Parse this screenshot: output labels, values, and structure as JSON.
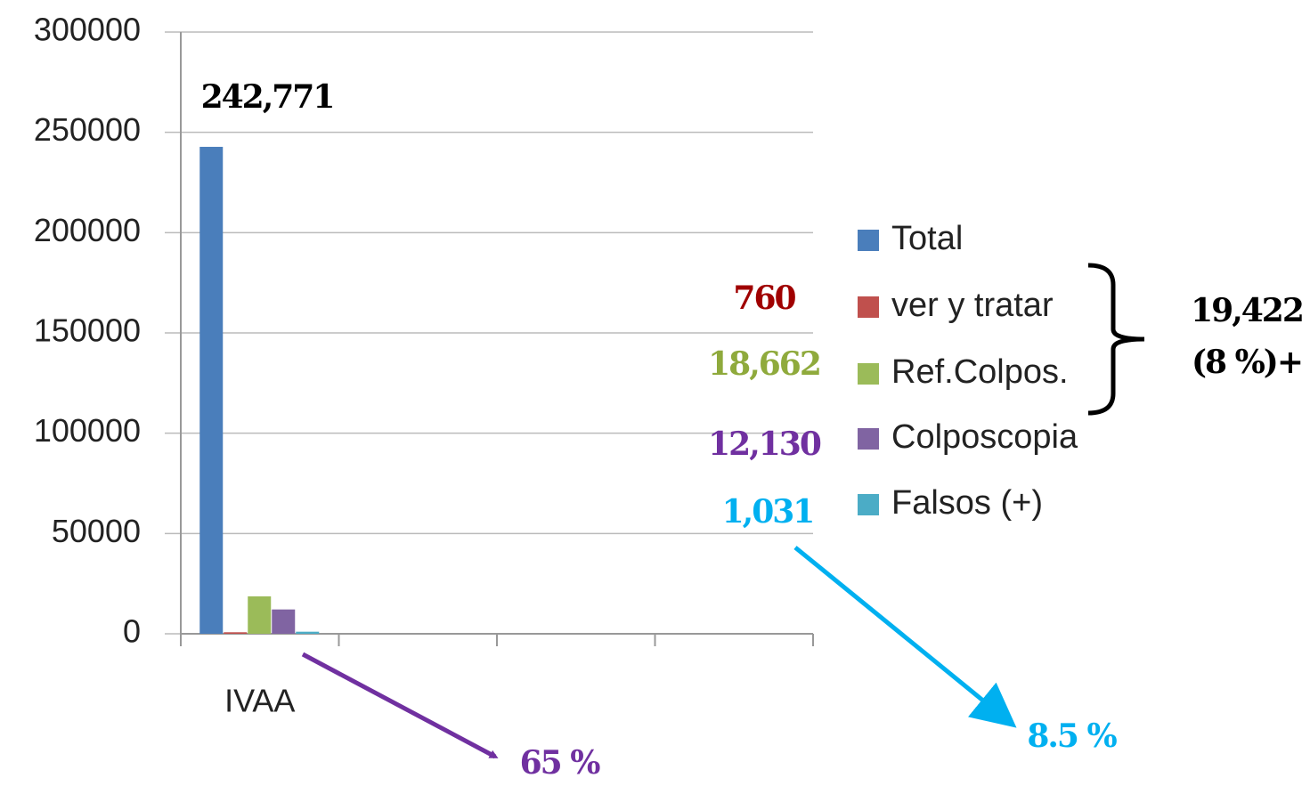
{
  "chart_data": {
    "type": "bar",
    "categories": [
      "IVAA",
      null,
      null,
      null
    ],
    "series": [
      {
        "name": "Total",
        "color": "#4a7ebb",
        "label_color": "#000000",
        "values": [
          242771,
          null,
          null,
          null
        ],
        "value_labels": [
          "242,771",
          null,
          null,
          null
        ]
      },
      {
        "name": "ver y tratar",
        "color": "#c0504d",
        "label_color": "#a00000",
        "values": [
          760,
          null,
          null,
          null
        ],
        "value_labels": [
          "760",
          null,
          null,
          null
        ]
      },
      {
        "name": "Ref.Colpos.",
        "color": "#9bbb59",
        "label_color": "#8faa3c",
        "values": [
          18662,
          null,
          null,
          null
        ],
        "value_labels": [
          "18,662",
          null,
          null,
          null
        ]
      },
      {
        "name": "Colposcopia",
        "color": "#8064a2",
        "label_color": "#7030a0",
        "values": [
          12130,
          null,
          null,
          null
        ],
        "value_labels": [
          "12,130",
          null,
          null,
          null
        ]
      },
      {
        "name": "Falsos (+)",
        "color": "#4bacc6",
        "label_color": "#00b0f0",
        "values": [
          1031,
          null,
          null,
          null
        ],
        "value_labels": [
          "1,031",
          null,
          null,
          null
        ]
      }
    ],
    "ylim": [
      0,
      300000
    ],
    "yticks": [
      0,
      50000,
      100000,
      150000,
      200000,
      250000,
      300000
    ],
    "grid": true,
    "legend": "right",
    "annotations": [
      {
        "text": "19,422",
        "color": "#000000"
      },
      {
        "text": "(8 %)+",
        "color": "#000000"
      },
      {
        "text": "65 %",
        "color": "#7030a0"
      },
      {
        "text": "8.5 %",
        "color": "#00b0f0"
      }
    ]
  }
}
